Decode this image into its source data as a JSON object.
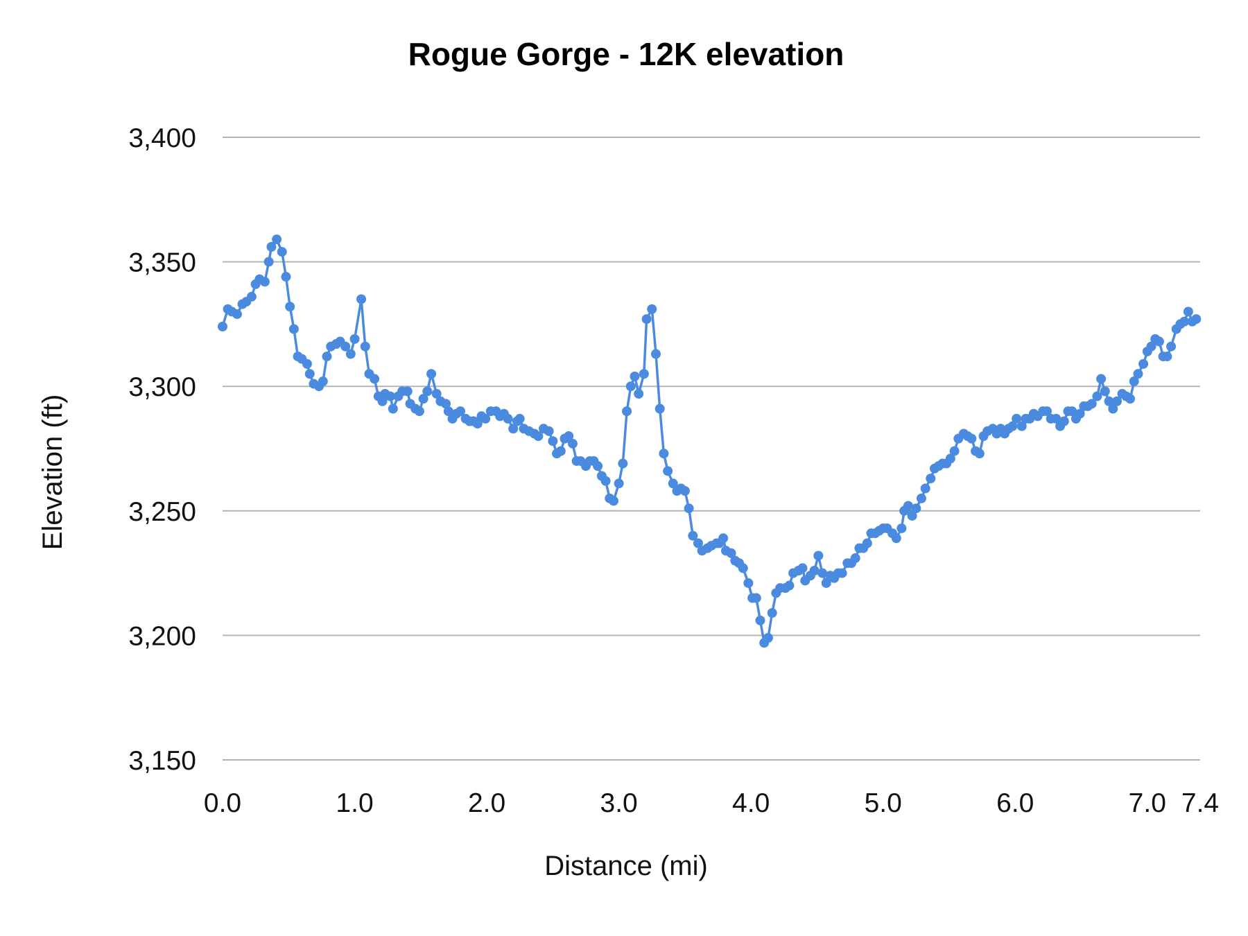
{
  "chart_data": {
    "type": "line",
    "title": "Rogue Gorge - 12K elevation",
    "xlabel": "Distance (mi)",
    "ylabel": "Elevation (ft)",
    "xlim": [
      0,
      7.4
    ],
    "ylim": [
      3150,
      3400
    ],
    "x_ticks": [
      "0.0",
      "1.0",
      "2.0",
      "3.0",
      "4.0",
      "5.0",
      "6.0",
      "7.0",
      "7.4"
    ],
    "x_tick_values": [
      0,
      1,
      2,
      3,
      4,
      5,
      6,
      7,
      7.4
    ],
    "y_ticks": [
      "3,400",
      "3,350",
      "3,300",
      "3,250",
      "3,200",
      "3,150"
    ],
    "y_tick_values": [
      3400,
      3350,
      3300,
      3250,
      3200,
      3150
    ],
    "grid": "horizontal",
    "legend": "none",
    "markers": true,
    "series_color": "#4a8be0",
    "series": [
      {
        "x": [
          0.0,
          0.04,
          0.07,
          0.11,
          0.15,
          0.18,
          0.22,
          0.25,
          0.28,
          0.32,
          0.35,
          0.37,
          0.41,
          0.45,
          0.48,
          0.51,
          0.54,
          0.57,
          0.6,
          0.64,
          0.66,
          0.69,
          0.73,
          0.76,
          0.79,
          0.82,
          0.86,
          0.89,
          0.93,
          0.97,
          1.0,
          1.05,
          1.08,
          1.11,
          1.15,
          1.18,
          1.21,
          1.23,
          1.27,
          1.29,
          1.33,
          1.36,
          1.4,
          1.42,
          1.46,
          1.49,
          1.52,
          1.55,
          1.58,
          1.62,
          1.65,
          1.69,
          1.71,
          1.74,
          1.77,
          1.8,
          1.84,
          1.87,
          1.9,
          1.93,
          1.96,
          1.99,
          2.03,
          2.07,
          2.1,
          2.13,
          2.16,
          2.2,
          2.23,
          2.25,
          2.28,
          2.32,
          2.36,
          2.39,
          2.43,
          2.47,
          2.5,
          2.53,
          2.56,
          2.59,
          2.62,
          2.65,
          2.68,
          2.71,
          2.75,
          2.78,
          2.81,
          2.84,
          2.87,
          2.9,
          2.93,
          2.96,
          3.0,
          3.03,
          3.06,
          3.09,
          3.12,
          3.15,
          3.19,
          3.21,
          3.25,
          3.28,
          3.31,
          3.34,
          3.37,
          3.41,
          3.44,
          3.47,
          3.5,
          3.53,
          3.56,
          3.6,
          3.63,
          3.67,
          3.7,
          3.74,
          3.76,
          3.79,
          3.81,
          3.85,
          3.88,
          3.91,
          3.94,
          3.98,
          4.01,
          4.04,
          4.07,
          4.1,
          4.13,
          4.16,
          4.19,
          4.22,
          4.26,
          4.29,
          4.32,
          4.36,
          4.39,
          4.41,
          4.45,
          4.48,
          4.51,
          4.54,
          4.57,
          4.6,
          4.63,
          4.66,
          4.69,
          4.73,
          4.76,
          4.79,
          4.82,
          4.85,
          4.88,
          4.91,
          4.94,
          4.97,
          5.0,
          5.03,
          5.07,
          5.1,
          5.14,
          5.16,
          5.19,
          5.22,
          5.25,
          5.29,
          5.32,
          5.36,
          5.39,
          5.42,
          5.45,
          5.48,
          5.51,
          5.54,
          5.57,
          5.61,
          5.64,
          5.67,
          5.7,
          5.73,
          5.76,
          5.79,
          5.83,
          5.86,
          5.89,
          5.92,
          5.95,
          5.98,
          6.01,
          6.05,
          6.08,
          6.11,
          6.14,
          6.17,
          6.21,
          6.24,
          6.27,
          6.31,
          6.34,
          6.37,
          6.4,
          6.43,
          6.46,
          6.49,
          6.52,
          6.55,
          6.58,
          6.62,
          6.65,
          6.68,
          6.71,
          6.74,
          6.77,
          6.81,
          6.84,
          6.87,
          6.9,
          6.93,
          6.97,
          7.0,
          7.03,
          7.06,
          7.09,
          7.12,
          7.15,
          7.18,
          7.22,
          7.25,
          7.28,
          7.31,
          7.34,
          7.37
        ],
        "y": [
          3324,
          3331,
          3330,
          3329,
          3333,
          3334,
          3336,
          3341,
          3343,
          3342,
          3350,
          3356,
          3359,
          3354,
          3344,
          3332,
          3323,
          3312,
          3311,
          3309,
          3305,
          3301,
          3300,
          3302,
          3312,
          3316,
          3317,
          3318,
          3316,
          3313,
          3319,
          3335,
          3316,
          3305,
          3303,
          3296,
          3294,
          3297,
          3296,
          3291,
          3296,
          3298,
          3298,
          3293,
          3291,
          3290,
          3295,
          3298,
          3305,
          3297,
          3294,
          3293,
          3290,
          3287,
          3289,
          3290,
          3287,
          3286,
          3286,
          3285,
          3288,
          3287,
          3290,
          3290,
          3288,
          3289,
          3287,
          3283,
          3286,
          3287,
          3283,
          3282,
          3281,
          3280,
          3283,
          3282,
          3278,
          3273,
          3274,
          3279,
          3280,
          3277,
          3270,
          3270,
          3268,
          3270,
          3270,
          3268,
          3264,
          3262,
          3255,
          3254,
          3261,
          3269,
          3290,
          3300,
          3304,
          3297,
          3305,
          3327,
          3331,
          3313,
          3291,
          3273,
          3266,
          3261,
          3258,
          3259,
          3258,
          3251,
          3240,
          3237,
          3234,
          3235,
          3236,
          3237,
          3237,
          3239,
          3234,
          3233,
          3230,
          3229,
          3227,
          3221,
          3215,
          3215,
          3206,
          3197,
          3199,
          3209,
          3217,
          3219,
          3219,
          3220,
          3225,
          3226,
          3227,
          3222,
          3224,
          3226,
          3232,
          3225,
          3221,
          3224,
          3223,
          3225,
          3225,
          3229,
          3229,
          3231,
          3235,
          3235,
          3237,
          3241,
          3241,
          3242,
          3243,
          3243,
          3241,
          3239,
          3243,
          3250,
          3252,
          3248,
          3251,
          3255,
          3259,
          3263,
          3267,
          3268,
          3269,
          3269,
          3271,
          3274,
          3279,
          3281,
          3280,
          3279,
          3274,
          3273,
          3280,
          3282,
          3283,
          3281,
          3283,
          3281,
          3283,
          3284,
          3287,
          3284,
          3287,
          3287,
          3289,
          3288,
          3290,
          3290,
          3287,
          3287,
          3284,
          3286,
          3290,
          3290,
          3287,
          3289,
          3292,
          3292,
          3293,
          3296,
          3303,
          3298,
          3294,
          3291,
          3294,
          3297,
          3296,
          3295,
          3302,
          3305,
          3309,
          3314,
          3316,
          3319,
          3318,
          3312,
          3312,
          3316,
          3323,
          3325,
          3326,
          3330,
          3326,
          3327
        ]
      }
    ]
  }
}
